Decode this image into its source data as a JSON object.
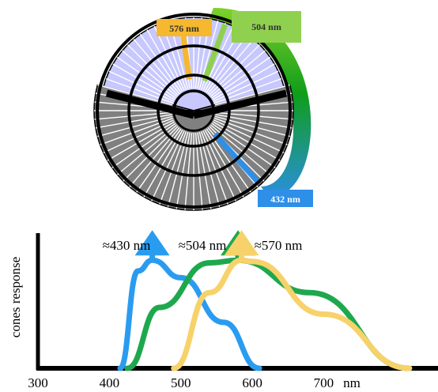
{
  "callouts": {
    "yellow": {
      "text": "576 nm",
      "color": "#f5b82e"
    },
    "green": {
      "text": "504 nm",
      "color": "#8fd14f"
    },
    "blue": {
      "text": "432 nm",
      "color": "#2e8fe8"
    }
  },
  "colors": {
    "rod_fill": "#c8c8ff",
    "cone_fill": "#808080",
    "arc_top": "#7fd12a",
    "arc_mid": "#0f9d1a",
    "arc_bottom": "#2a8fe0"
  },
  "chart_data": {
    "type": "line",
    "ylabel": "cones response",
    "xunit": "nm",
    "x_ticks": [
      "300",
      "400",
      "500",
      "600",
      "700"
    ],
    "xlim": [
      300,
      860
    ],
    "series": [
      {
        "name": "≈430 nm",
        "color": "#2a9cf0",
        "x": [
          415,
          440,
          460,
          500,
          560,
          610
        ],
        "y": [
          0.0,
          0.72,
          0.8,
          0.67,
          0.34,
          0.0
        ]
      },
      {
        "name": "≈504 nm",
        "color": "#1ea84e",
        "x": [
          425,
          470,
          540,
          580,
          680,
          820
        ],
        "y": [
          0.0,
          0.45,
          0.78,
          0.8,
          0.56,
          0.0
        ]
      },
      {
        "name": "≈570 nm",
        "color": "#f7d26a",
        "x": [
          490,
          540,
          585,
          600,
          700,
          820
        ],
        "y": [
          0.0,
          0.56,
          0.8,
          0.79,
          0.4,
          0.0
        ]
      }
    ]
  }
}
